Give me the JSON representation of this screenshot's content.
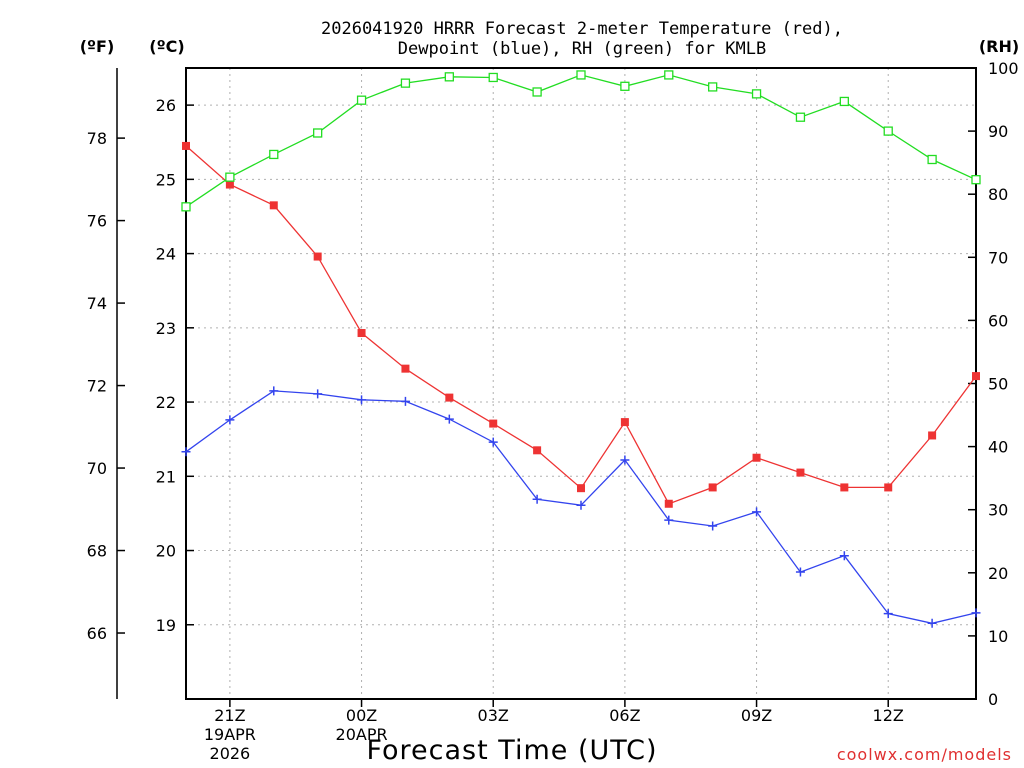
{
  "chart_data": {
    "type": "line",
    "title_line1": "2026041920 HRRR Forecast 2-meter Temperature (red),",
    "title_line2": "Dewpoint (blue), RH (green) for KMLB",
    "xlabel": "Forecast Time (UTC)",
    "credit": "coolwx.com/models",
    "units": {
      "fahrenheit": "(ºF)",
      "celsius": "(ºC)",
      "rh": "(RH)"
    },
    "x_hours": [
      20,
      21,
      22,
      23,
      24,
      25,
      26,
      27,
      28,
      29,
      30,
      31,
      32,
      33,
      34,
      35,
      36,
      37,
      38
    ],
    "xlim": [
      20,
      38
    ],
    "x_ticks": [
      {
        "hour": 21,
        "lines": [
          "21Z",
          "19APR",
          "2026"
        ]
      },
      {
        "hour": 24,
        "lines": [
          "00Z",
          "20APR"
        ]
      },
      {
        "hour": 27,
        "lines": [
          "03Z"
        ]
      },
      {
        "hour": 30,
        "lines": [
          "06Z"
        ]
      },
      {
        "hour": 33,
        "lines": [
          "09Z"
        ]
      },
      {
        "hour": 36,
        "lines": [
          "12Z"
        ]
      }
    ],
    "y_celsius": {
      "ylim": [
        18.0,
        26.5
      ],
      "ticks": [
        "19",
        "20",
        "21",
        "22",
        "23",
        "24",
        "25",
        "26"
      ]
    },
    "y_fahrenheit": {
      "ticks": [
        "66",
        "68",
        "70",
        "72",
        "74",
        "76",
        "78"
      ]
    },
    "y_rh": {
      "ylim": [
        0,
        100
      ],
      "ticks": [
        "0",
        "10",
        "20",
        "30",
        "40",
        "50",
        "60",
        "70",
        "80",
        "90",
        "100"
      ]
    },
    "series": [
      {
        "name": "Temperature",
        "axis": "celsius",
        "color": "#ee3333",
        "marker": "filled-square",
        "values": [
          25.45,
          24.93,
          24.65,
          23.96,
          22.93,
          22.45,
          22.06,
          21.71,
          21.35,
          20.84,
          21.73,
          20.63,
          20.85,
          21.25,
          21.05,
          20.85,
          20.85,
          21.55,
          22.35
        ]
      },
      {
        "name": "Dewpoint",
        "axis": "celsius",
        "color": "#3344ee",
        "marker": "plus",
        "values": [
          21.33,
          21.76,
          22.15,
          22.11,
          22.03,
          22.01,
          21.77,
          21.46,
          20.69,
          20.61,
          21.22,
          20.41,
          20.33,
          20.52,
          19.71,
          19.93,
          19.15,
          19.02,
          19.16
        ]
      },
      {
        "name": "RH",
        "axis": "rh",
        "color": "#22dd22",
        "marker": "open-square",
        "values": [
          78.0,
          82.7,
          86.3,
          89.7,
          94.9,
          97.6,
          98.6,
          98.5,
          96.2,
          98.9,
          97.1,
          98.9,
          97.0,
          95.9,
          92.2,
          94.7,
          90.0,
          85.5,
          82.3
        ]
      }
    ]
  }
}
